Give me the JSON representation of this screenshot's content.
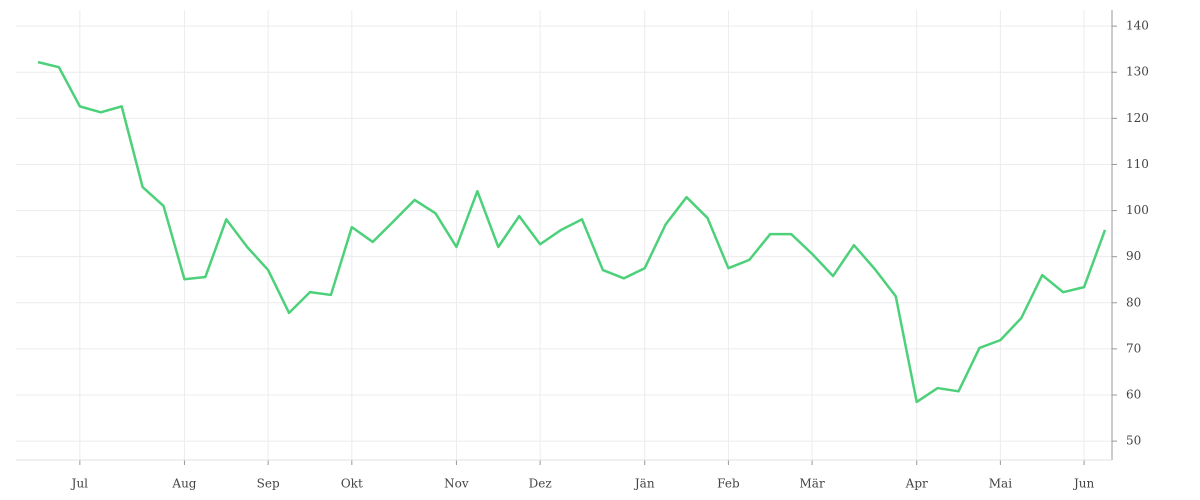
{
  "chart_data": {
    "type": "line",
    "categories": [
      null,
      null,
      "Jul",
      null,
      null,
      null,
      null,
      "Aug",
      null,
      null,
      null,
      "Sep",
      null,
      null,
      null,
      "Okt",
      null,
      null,
      null,
      null,
      "Nov",
      null,
      null,
      null,
      "Dez",
      null,
      null,
      null,
      null,
      "Jän",
      null,
      null,
      null,
      "Feb",
      null,
      null,
      null,
      "Mär",
      null,
      null,
      null,
      null,
      "Apr",
      null,
      null,
      null,
      "Mai",
      null,
      null,
      null,
      "Jun",
      null
    ],
    "series": [
      {
        "color": "#4cd17a",
        "values": [
          132.2,
          131.1,
          122.6,
          121.3,
          122.6,
          105.1,
          101.0,
          85.1,
          85.6,
          98.1,
          92.1,
          87.1,
          77.8,
          82.3,
          81.7,
          96.4,
          93.2,
          97.7,
          102.3,
          99.4,
          92.1,
          104.2,
          92.1,
          98.8,
          92.7,
          95.8,
          98.1,
          87.1,
          85.3,
          87.5,
          97.0,
          102.9,
          98.4,
          87.5,
          89.3,
          94.9,
          94.9,
          90.6,
          85.8,
          92.5,
          87.3,
          81.4,
          58.5,
          61.5,
          60.8,
          70.2,
          71.9,
          76.7,
          86.0,
          82.3,
          83.4,
          95.8
        ]
      }
    ],
    "ylim": [
      45.9,
      143.5
    ],
    "yticks": [
      50,
      60,
      70,
      80,
      90,
      100,
      110,
      120,
      130,
      140
    ],
    "grid": true
  }
}
